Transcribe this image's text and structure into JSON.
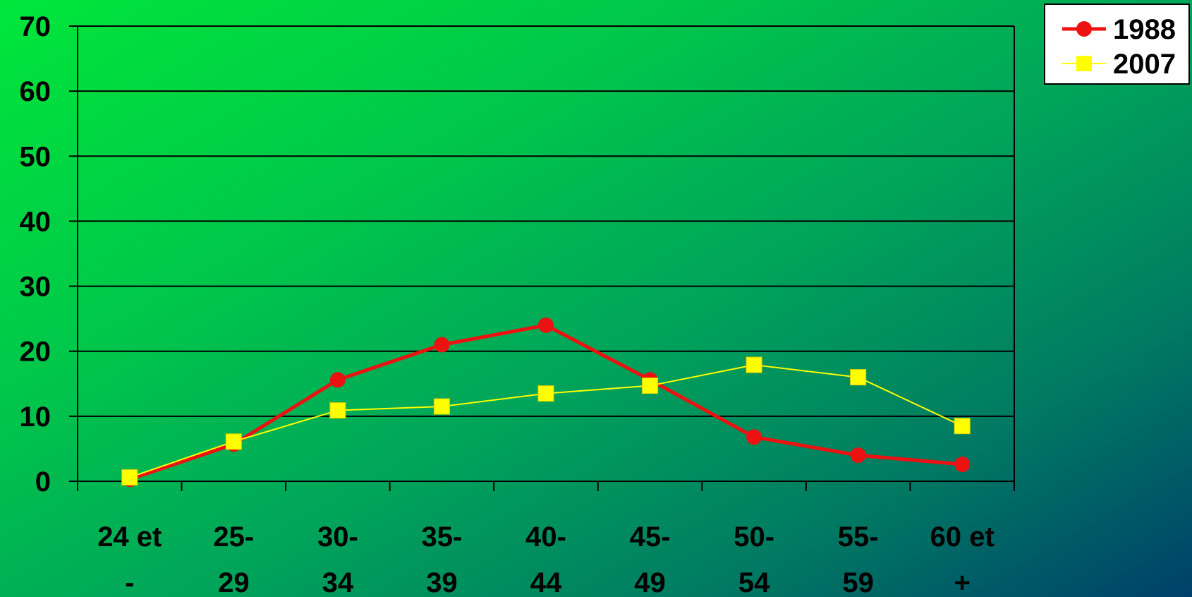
{
  "chart_data": {
    "type": "line",
    "categories": [
      [
        "24 et",
        "-"
      ],
      [
        "25-",
        "29"
      ],
      [
        "30-",
        "34"
      ],
      [
        "35-",
        "39"
      ],
      [
        "40-",
        "44"
      ],
      [
        "45-",
        "49"
      ],
      [
        "50-",
        "54"
      ],
      [
        "55-",
        "59"
      ],
      [
        "60 et",
        "+"
      ]
    ],
    "yticks": [
      "0",
      "10",
      "20",
      "30",
      "40",
      "50",
      "60",
      "70"
    ],
    "ylim": [
      0,
      70
    ],
    "grid": true,
    "legend_position": "top-right",
    "series": [
      {
        "name": "1988",
        "values": [
          0.3,
          5.7,
          15.6,
          21.0,
          24.0,
          15.6,
          6.8,
          4.0,
          2.6
        ],
        "color": "#ee1111",
        "marker": "circle"
      },
      {
        "name": "2007",
        "values": [
          0.6,
          6.1,
          10.9,
          11.5,
          13.5,
          14.7,
          17.9,
          16.0,
          8.5
        ],
        "color": "#ffff00",
        "marker": "square"
      }
    ]
  }
}
